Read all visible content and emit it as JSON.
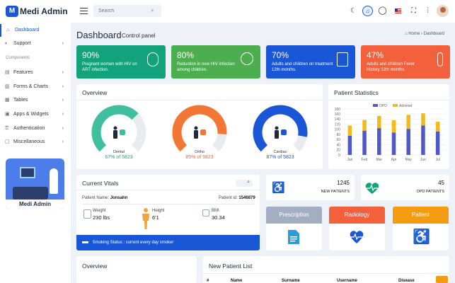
{
  "app": {
    "logo_mark": "M",
    "title": "Medi Admin"
  },
  "topbar": {
    "search_placeholder": "Search",
    "icons": [
      "menu-icon",
      "search-icon",
      "moon-icon",
      "bell-icon",
      "chat-icon",
      "flag-icon",
      "fullscreen-icon",
      "settings-icon",
      "avatar"
    ]
  },
  "sidebar": {
    "items": [
      {
        "label": "Dashboard",
        "icon": "home-icon",
        "active": true
      },
      {
        "label": "Support",
        "icon": "support-icon",
        "chevron": true
      },
      {
        "label": "Features",
        "icon": "features-icon",
        "chevron": true
      },
      {
        "label": "Forms & Charts",
        "icon": "forms-icon",
        "chevron": true
      },
      {
        "label": "Tables",
        "icon": "tables-icon",
        "chevron": true
      },
      {
        "label": "Apps & Widgets",
        "icon": "apps-icon",
        "chevron": true
      },
      {
        "label": "Authentication",
        "icon": "auth-icon",
        "chevron": true
      },
      {
        "label": "Miscellaneous",
        "icon": "misc-icon",
        "chevron": true
      }
    ],
    "section_label": "Components",
    "promo_label": "Medi Admin"
  },
  "header": {
    "title": "Dashboard",
    "subtitle": "Control panel",
    "breadcrumb_home": "Home",
    "breadcrumb_sep": "›",
    "breadcrumb_current": "Dashboard"
  },
  "stats": [
    {
      "value": "90%",
      "desc": "Pregnant women with HIV on ART infection.",
      "color": "#12a37c"
    },
    {
      "value": "80%",
      "desc": "Reduction in new HIV infection among children.",
      "color": "#4cae4f"
    },
    {
      "value": "70%",
      "desc": "Adults and children on treatment 12th months.",
      "color": "#1a57d6"
    },
    {
      "value": "47%",
      "desc": "Adults and children Fever History 12th months.",
      "color": "#f2603c"
    }
  ],
  "overview": {
    "title": "Overview",
    "gauges": [
      {
        "label": "Dental",
        "value": "67% of 5823",
        "percent": 67,
        "color": "#3fbf9e",
        "text_color": "#12a37c"
      },
      {
        "label": "Ortho",
        "value": "85% of 5823",
        "percent": 85,
        "color": "#f27634",
        "text_color": "#f2603c"
      },
      {
        "label": "Cardiac",
        "value": "87% of 5823",
        "percent": 87,
        "color": "#1a57d6",
        "text_color": "#1a57d6"
      }
    ]
  },
  "patient_statistics": {
    "title": "Patient Statistics",
    "chart_data": {
      "type": "bar",
      "categories": [
        "Jan",
        "Feb",
        "Mar",
        "Apr",
        "May",
        "Jun",
        "Jul"
      ],
      "series": [
        {
          "name": "OPD",
          "values": [
            75,
            95,
            105,
            88,
            102,
            115,
            92
          ],
          "color": "#5058c7"
        },
        {
          "name": "Admited",
          "values": [
            40,
            42,
            48,
            48,
            55,
            48,
            38
          ],
          "color": "#f5b91a"
        }
      ],
      "yticks": [
        0,
        20,
        40,
        60,
        80,
        100,
        120,
        140,
        160,
        180
      ],
      "ylim": [
        0,
        180
      ],
      "stacked": true,
      "legend_position": "top"
    }
  },
  "vitals": {
    "title": "Current Vitals",
    "patient_name_label": "Patient Name:",
    "patient_name": "Jonsahn",
    "patient_id_label": "Patient id:",
    "patient_id": "1546879",
    "weight_label": "Weight",
    "weight": "230 lbs",
    "height_label": "Height",
    "height": "6'1",
    "bmi_label": "BMI",
    "bmi": "30.34",
    "smoking_status": "Smoking Status : current every day smoker"
  },
  "mini_stats": [
    {
      "value": "1245",
      "label": "NEW PATIENTS",
      "icon": "wheelchair-icon"
    },
    {
      "value": "45",
      "label": "OPD PATIENTS",
      "icon": "heartbeat-icon"
    }
  ],
  "departments": [
    {
      "label": "Prescription",
      "color": "#a4aec3",
      "icon": "document-icon",
      "icon_color": "#2d9cdb"
    },
    {
      "label": "Radiology",
      "color": "#f2603c",
      "icon": "heartbeat-icon",
      "icon_color": "#1a57d6"
    },
    {
      "label": "Patient",
      "color": "#f39c12",
      "icon": "wheelchair-icon",
      "icon_color": "#1a57d6"
    }
  ],
  "bottom": {
    "overview_title": "Overview",
    "new_patient_title": "New Patient List",
    "columns": [
      "#",
      "Name",
      "Surname",
      "Username",
      "Disease"
    ]
  }
}
